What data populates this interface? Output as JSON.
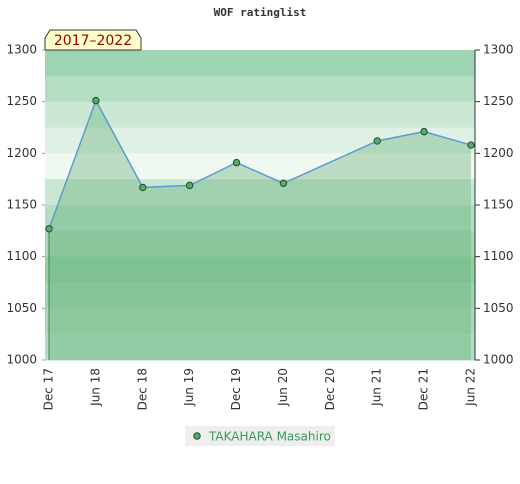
{
  "chart_data": {
    "type": "area",
    "title": "WOF ratinglist",
    "annotation": "2017–2022",
    "xticks": [
      "Dec 17",
      "Jun 18",
      "Dec 18",
      "Jun 19",
      "Dec 19",
      "Jun 20",
      "Dec 20",
      "Jun 21",
      "Dec 21",
      "Jun 22"
    ],
    "x": [
      "Dec 17",
      "Jun 18",
      "Dec 18",
      "Jun 19",
      "Dec 19",
      "Jun 20",
      "Jun 21",
      "Dec 21",
      "Jun 22"
    ],
    "series": [
      {
        "name": "TAKAHARA Masahiro",
        "color": "#5aa96e",
        "values": [
          1127,
          1251,
          1167,
          1169,
          1191,
          1171,
          1212,
          1221,
          1208
        ]
      }
    ],
    "ylim": [
      1000,
      1300
    ],
    "yticks": [
      1000,
      1050,
      1100,
      1150,
      1200,
      1250,
      1300
    ],
    "y2lim": [
      1000,
      1300
    ],
    "y2ticks": [
      1000,
      1050,
      1100,
      1150,
      1200,
      1250,
      1300
    ],
    "legend": "bottom"
  }
}
